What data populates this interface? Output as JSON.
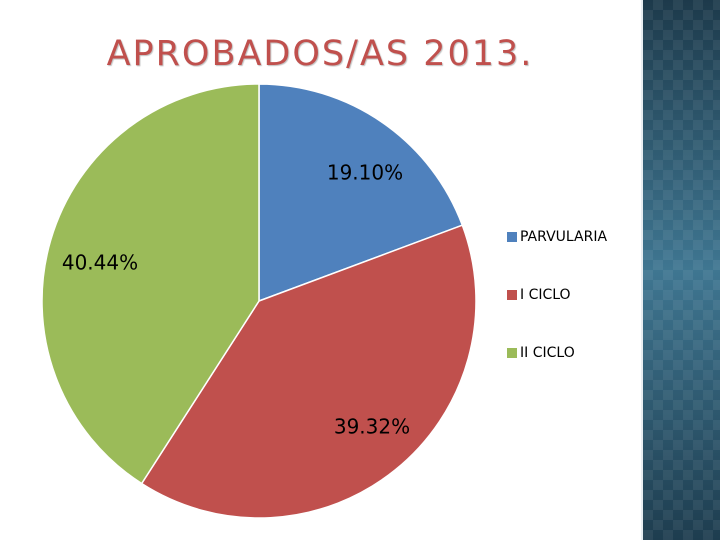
{
  "slide": {
    "title": "APROBADOS/AS 2013."
  },
  "colors": {
    "title": "#c0504d",
    "side_panel": "#2a4f63"
  },
  "chart_data": {
    "type": "pie",
    "title": "",
    "categories": [
      "PARVULARIA",
      "I CICLO",
      "II CICLO"
    ],
    "values": [
      19.1,
      39.32,
      40.44
    ],
    "labels": [
      "19.10%",
      "39.32%",
      "40.44%"
    ],
    "colors": [
      "#4f81bd",
      "#c0504d",
      "#9bbb59"
    ],
    "start_angle_deg": 0,
    "direction": "clockwise",
    "legend": "right"
  }
}
